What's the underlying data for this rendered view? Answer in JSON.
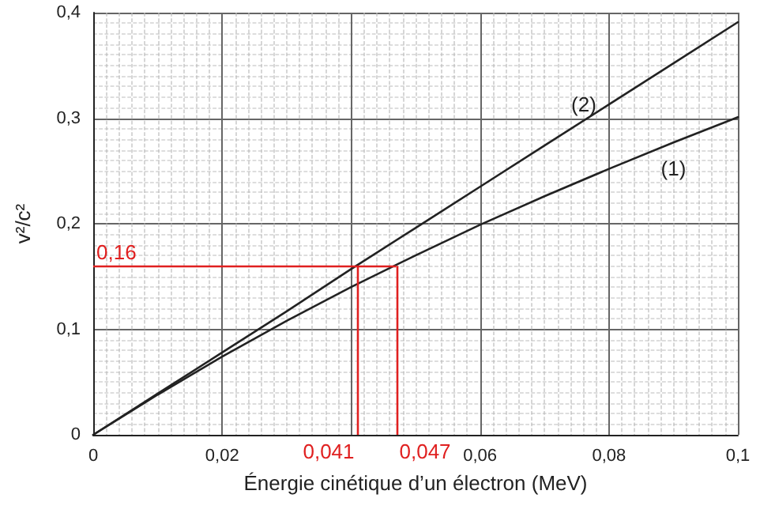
{
  "chart_data": {
    "type": "line",
    "xlabel": "Énergie cinétique d’un électron (MeV)",
    "ylabel": "v²/c²",
    "x": [
      0,
      0.01,
      0.02,
      0.03,
      0.04,
      0.05,
      0.06,
      0.07,
      0.08,
      0.09,
      0.1
    ],
    "series": [
      {
        "name": "(1)",
        "color": "#222222",
        "values": [
          0,
          0.038,
          0.074,
          0.108,
          0.14,
          0.17,
          0.199,
          0.226,
          0.252,
          0.277,
          0.301
        ]
      },
      {
        "name": "(2)",
        "color": "#222222",
        "values": [
          0,
          0.039,
          0.078,
          0.117,
          0.157,
          0.196,
          0.235,
          0.274,
          0.313,
          0.352,
          0.391
        ]
      }
    ],
    "xlim": [
      0,
      0.1
    ],
    "xticks": [
      0,
      {
        "value": 0.02,
        "label": "0,02"
      },
      {
        "value": 0.04,
        "label": null
      },
      {
        "value": 0.06,
        "label": "0,06"
      },
      {
        "value": 0.08,
        "label": "0,08"
      },
      {
        "value": 0.1,
        "label": "0,1"
      }
    ],
    "ylim": [
      0,
      0.4
    ],
    "yticks": [
      0,
      {
        "value": 0.1,
        "label": "0,1"
      },
      {
        "value": 0.2,
        "label": "0,2"
      },
      {
        "value": 0.3,
        "label": "0,3"
      },
      {
        "value": 0.4,
        "label": "0,4"
      }
    ],
    "ref_lines": [
      {
        "axis": "y",
        "value": 0.16,
        "label": "0,16",
        "color": "#e02020"
      },
      {
        "axis": "x",
        "value": 0.041,
        "label": "0,041",
        "color": "#e02020"
      },
      {
        "axis": "x",
        "value": 0.047,
        "label": "0,047",
        "color": "#e02020"
      }
    ],
    "grid": true,
    "marker": "none",
    "line_style": "solid",
    "legend": false
  }
}
